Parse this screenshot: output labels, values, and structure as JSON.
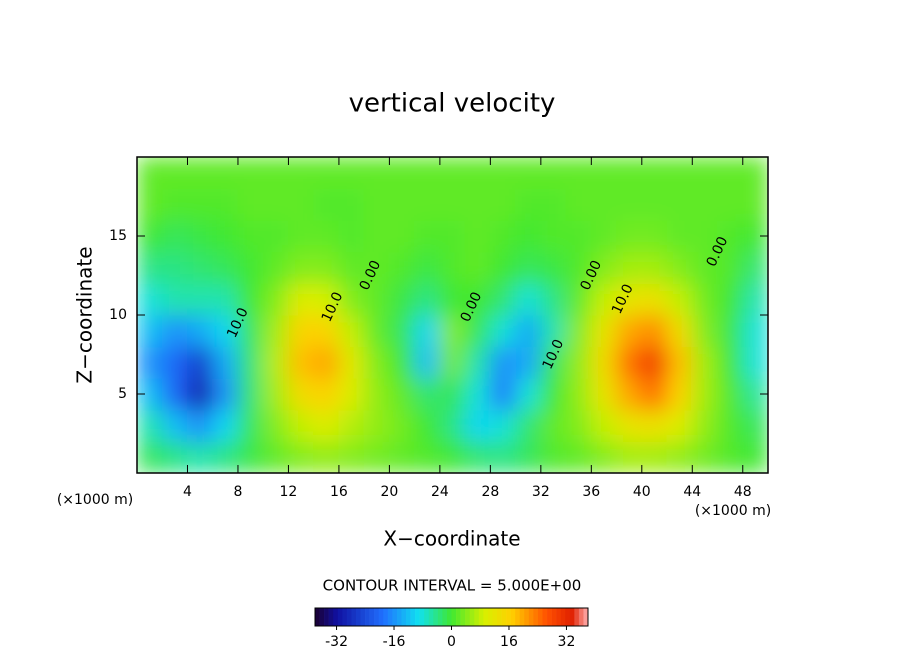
{
  "chart_data": {
    "type": "contour",
    "title": "vertical velocity",
    "x_label": "X−coordinate",
    "y_label": "Z−coordinate",
    "x_unit": "(×1000 m)",
    "y_unit": "(×1000 m)",
    "contour_interval": "CONTOUR INTERVAL = 5.000E+00",
    "xlim": [
      0,
      50
    ],
    "ylim": [
      0,
      20
    ],
    "xticks": [
      4,
      8,
      12,
      16,
      20,
      24,
      28,
      32,
      36,
      40,
      44,
      48
    ],
    "yticks": [
      5,
      10,
      15
    ],
    "clim": [
      -38,
      38
    ],
    "cticks": [
      -32,
      -16,
      0,
      16,
      32
    ],
    "x": [
      1,
      3,
      5,
      7,
      9,
      11,
      13,
      15,
      17,
      19,
      21,
      23,
      25,
      27,
      29,
      31,
      33,
      35,
      37,
      39,
      41,
      43,
      45,
      47,
      49
    ],
    "y": [
      1,
      3,
      5,
      7,
      9,
      11,
      13,
      15,
      17,
      19
    ],
    "z": [
      [
        -2,
        -4,
        -6,
        -4,
        -1,
        2,
        4,
        5,
        4,
        3,
        2,
        1,
        0,
        -3,
        -4,
        -2,
        1,
        2,
        4,
        6,
        6,
        5,
        3,
        1,
        0
      ],
      [
        -6,
        -12,
        -16,
        -10,
        -2,
        4,
        8,
        10,
        7,
        5,
        3,
        0,
        -4,
        -10,
        -8,
        -3,
        2,
        4,
        8,
        12,
        13,
        10,
        5,
        1,
        -2
      ],
      [
        -12,
        -20,
        -30,
        -16,
        -3,
        6,
        14,
        16,
        10,
        5,
        2,
        -3,
        -2,
        -8,
        -18,
        -8,
        0,
        5,
        12,
        20,
        24,
        16,
        6,
        1,
        -5
      ],
      [
        -16,
        -20,
        -26,
        -14,
        -3,
        7,
        18,
        20,
        11,
        4,
        0,
        -12,
        3,
        -6,
        -16,
        -14,
        -2,
        5,
        14,
        24,
        30,
        18,
        6,
        0,
        -8
      ],
      [
        -12,
        -16,
        -14,
        -10,
        -2,
        6,
        16,
        16,
        8,
        2,
        -2,
        -10,
        4,
        -2,
        -8,
        -14,
        -6,
        4,
        12,
        20,
        22,
        14,
        4,
        -1,
        -8
      ],
      [
        -8,
        -6,
        -6,
        -6,
        0,
        4,
        10,
        9,
        4,
        2,
        -1,
        -4,
        0,
        0,
        -3,
        -8,
        -4,
        2,
        8,
        12,
        13,
        8,
        3,
        0,
        -6
      ],
      [
        -4,
        -4,
        -3,
        -2,
        0,
        2,
        4,
        4,
        2,
        2,
        1,
        -1,
        1,
        2,
        0,
        -2,
        -1,
        1,
        4,
        6,
        6,
        4,
        2,
        1,
        -3
      ],
      [
        0,
        -2,
        -1,
        0,
        1,
        1,
        2,
        2,
        1,
        2,
        2,
        1,
        1,
        2,
        1,
        0,
        1,
        1,
        2,
        3,
        3,
        2,
        2,
        1,
        0
      ],
      [
        2,
        1,
        1,
        1,
        2,
        2,
        2,
        1,
        1,
        2,
        2,
        2,
        2,
        2,
        2,
        1,
        1,
        2,
        2,
        2,
        2,
        2,
        2,
        2,
        2
      ],
      [
        2,
        2,
        2,
        2,
        2,
        2,
        2,
        2,
        2,
        2,
        2,
        2,
        2,
        2,
        2,
        2,
        2,
        2,
        2,
        2,
        2,
        2,
        2,
        2,
        2
      ]
    ],
    "contour_labels": [
      {
        "text": "10.0",
        "x": 8,
        "y": 9.5
      },
      {
        "text": "10.0",
        "x": 15.5,
        "y": 10.5
      },
      {
        "text": "0.00",
        "x": 18.5,
        "y": 12.5
      },
      {
        "text": "0.00",
        "x": 26.5,
        "y": 10.5
      },
      {
        "text": "10.0",
        "x": 33,
        "y": 7.5
      },
      {
        "text": "0.00",
        "x": 36,
        "y": 12.5
      },
      {
        "text": "10.0",
        "x": 38.5,
        "y": 11
      },
      {
        "text": "0.00",
        "x": 46,
        "y": 14
      }
    ]
  }
}
